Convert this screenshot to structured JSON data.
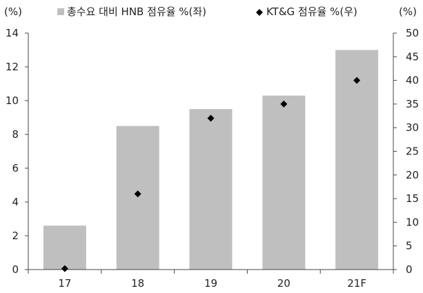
{
  "chart_data": {
    "type": "bar",
    "categories": [
      "17",
      "18",
      "19",
      "20",
      "21F"
    ],
    "series": [
      {
        "name": "총수요 대비 HNB 점유율 %(좌)",
        "type": "bar",
        "axis": "left",
        "color": "#bfbfbf",
        "values": [
          2.6,
          8.5,
          9.5,
          10.3,
          13.0
        ]
      },
      {
        "name": "KT&G 점유율 %(우)",
        "type": "scatter",
        "marker": "diamond",
        "axis": "right",
        "color": "#000000",
        "values": [
          0.2,
          16.0,
          32.0,
          35.0,
          40.0
        ]
      }
    ],
    "y_left": {
      "unit": "(%)",
      "ylim": [
        0,
        14
      ],
      "ticks": [
        0,
        2,
        4,
        6,
        8,
        10,
        12,
        14
      ]
    },
    "y_right": {
      "unit": "(%)",
      "ylim": [
        0,
        50
      ],
      "ticks": [
        0,
        5,
        10,
        15,
        20,
        25,
        30,
        35,
        40,
        45,
        50
      ]
    },
    "legend": "top"
  }
}
